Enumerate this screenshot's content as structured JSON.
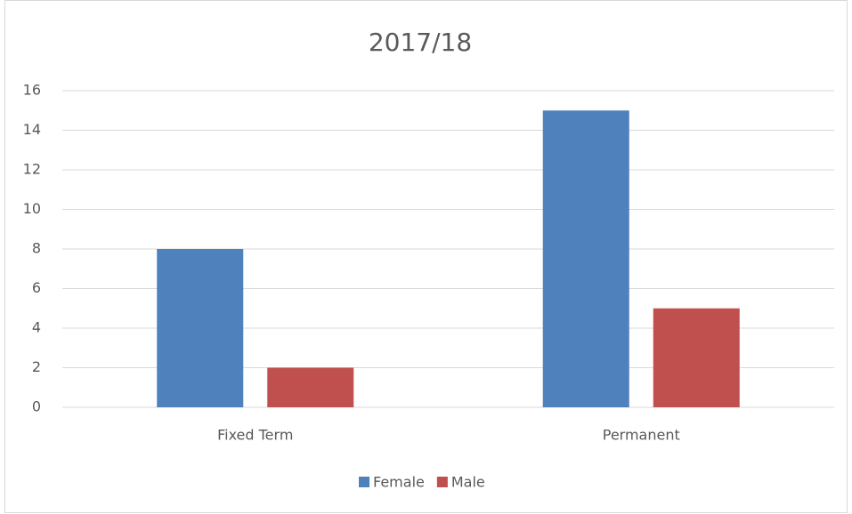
{
  "chart_data": {
    "type": "bar",
    "title": "2017/18",
    "categories": [
      "Fixed Term",
      "Permanent"
    ],
    "series": [
      {
        "name": "Female",
        "color": "#4f81bd",
        "values": [
          8,
          15
        ]
      },
      {
        "name": "Male",
        "color": "#c0504d",
        "values": [
          2,
          5
        ]
      }
    ],
    "ylim": [
      0,
      16
    ],
    "yticks": [
      0,
      2,
      4,
      6,
      8,
      10,
      12,
      14,
      16
    ],
    "grid": true,
    "legend": "bottom"
  }
}
